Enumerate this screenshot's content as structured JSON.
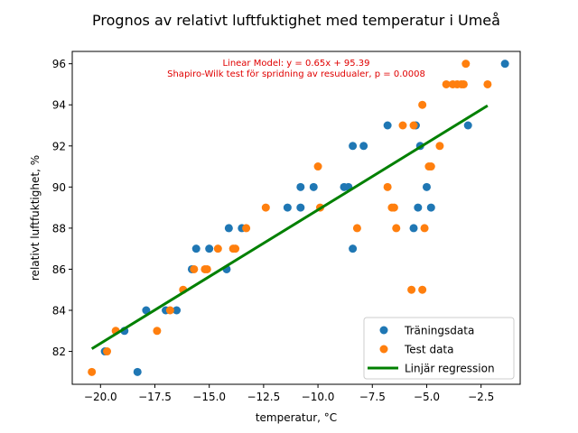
{
  "chart_data": {
    "type": "scatter",
    "title": "Prognos av relativt luftfuktighet med temperatur i Umeå",
    "xlabel": "temperatur, °C",
    "ylabel": "relativt luftfuktighet, %",
    "xlim": [
      -21.3,
      -0.7
    ],
    "ylim": [
      80.4,
      96.6
    ],
    "xticks": [
      -20.0,
      -17.5,
      -15.0,
      -12.5,
      -10.0,
      -7.5,
      -5.0,
      -2.5
    ],
    "xtick_labels": [
      "−20.0",
      "−17.5",
      "−15.0",
      "−12.5",
      "−10.0",
      "−7.5",
      "−5.0",
      "−2.5"
    ],
    "yticks": [
      82,
      84,
      86,
      88,
      90,
      92,
      94,
      96
    ],
    "ytick_labels": [
      "82",
      "84",
      "86",
      "88",
      "90",
      "92",
      "94",
      "96"
    ],
    "grid": false,
    "legend": "lower-right",
    "annotations": [
      "Linear Model: y = 0.65x + 95.39",
      "Shapiro-Wilk test för spridning av resudualer, p = 0.0008"
    ],
    "annotation_color": "#e00000",
    "series": [
      {
        "name": "Träningsdata",
        "kind": "scatter",
        "color": "#1f77b4",
        "points": [
          [
            -1.4,
            96
          ],
          [
            -3.1,
            93
          ],
          [
            -5.5,
            93
          ],
          [
            -6.8,
            93
          ],
          [
            -5.3,
            92
          ],
          [
            -7.9,
            92
          ],
          [
            -8.4,
            92
          ],
          [
            -8.6,
            90
          ],
          [
            -8.8,
            90
          ],
          [
            -10.2,
            90
          ],
          [
            -10.8,
            90
          ],
          [
            -5.0,
            90
          ],
          [
            -11.4,
            89
          ],
          [
            -10.8,
            89
          ],
          [
            -5.4,
            89
          ],
          [
            -4.8,
            89
          ],
          [
            -13.5,
            88
          ],
          [
            -14.1,
            88
          ],
          [
            -5.6,
            88
          ],
          [
            -8.4,
            87
          ],
          [
            -15.6,
            87
          ],
          [
            -15.0,
            87
          ],
          [
            -15.8,
            86
          ],
          [
            -14.2,
            86
          ],
          [
            -16.5,
            84
          ],
          [
            -17.0,
            84
          ],
          [
            -17.9,
            84
          ],
          [
            -18.9,
            83
          ],
          [
            -19.8,
            82
          ],
          [
            -18.3,
            81
          ]
        ]
      },
      {
        "name": "Test data",
        "kind": "scatter",
        "color": "#ff7f0e",
        "points": [
          [
            -3.2,
            96
          ],
          [
            -3.6,
            95
          ],
          [
            -4.1,
            95
          ],
          [
            -3.8,
            95
          ],
          [
            -3.3,
            95
          ],
          [
            -3.4,
            95
          ],
          [
            -2.2,
            95
          ],
          [
            -5.2,
            94
          ],
          [
            -6.1,
            93
          ],
          [
            -5.6,
            93
          ],
          [
            -4.4,
            92
          ],
          [
            -4.8,
            91
          ],
          [
            -4.9,
            91
          ],
          [
            -10.0,
            91
          ],
          [
            -6.8,
            90
          ],
          [
            -6.6,
            89
          ],
          [
            -6.5,
            89
          ],
          [
            -9.9,
            89
          ],
          [
            -12.4,
            89
          ],
          [
            -6.4,
            88
          ],
          [
            -5.1,
            88
          ],
          [
            -8.2,
            88
          ],
          [
            -13.3,
            88
          ],
          [
            -13.8,
            87
          ],
          [
            -13.9,
            87
          ],
          [
            -14.6,
            87
          ],
          [
            -15.2,
            86
          ],
          [
            -15.1,
            86
          ],
          [
            -15.7,
            86
          ],
          [
            -5.7,
            85
          ],
          [
            -5.2,
            85
          ],
          [
            -16.2,
            85
          ],
          [
            -16.8,
            84
          ],
          [
            -17.4,
            83
          ],
          [
            -19.3,
            83
          ],
          [
            -19.7,
            82
          ],
          [
            -20.4,
            81
          ]
        ]
      },
      {
        "name": "Linjär regression",
        "kind": "line",
        "color": "#008000",
        "x": [
          -20.4,
          -2.2
        ],
        "y": [
          82.13,
          93.96
        ]
      }
    ]
  }
}
